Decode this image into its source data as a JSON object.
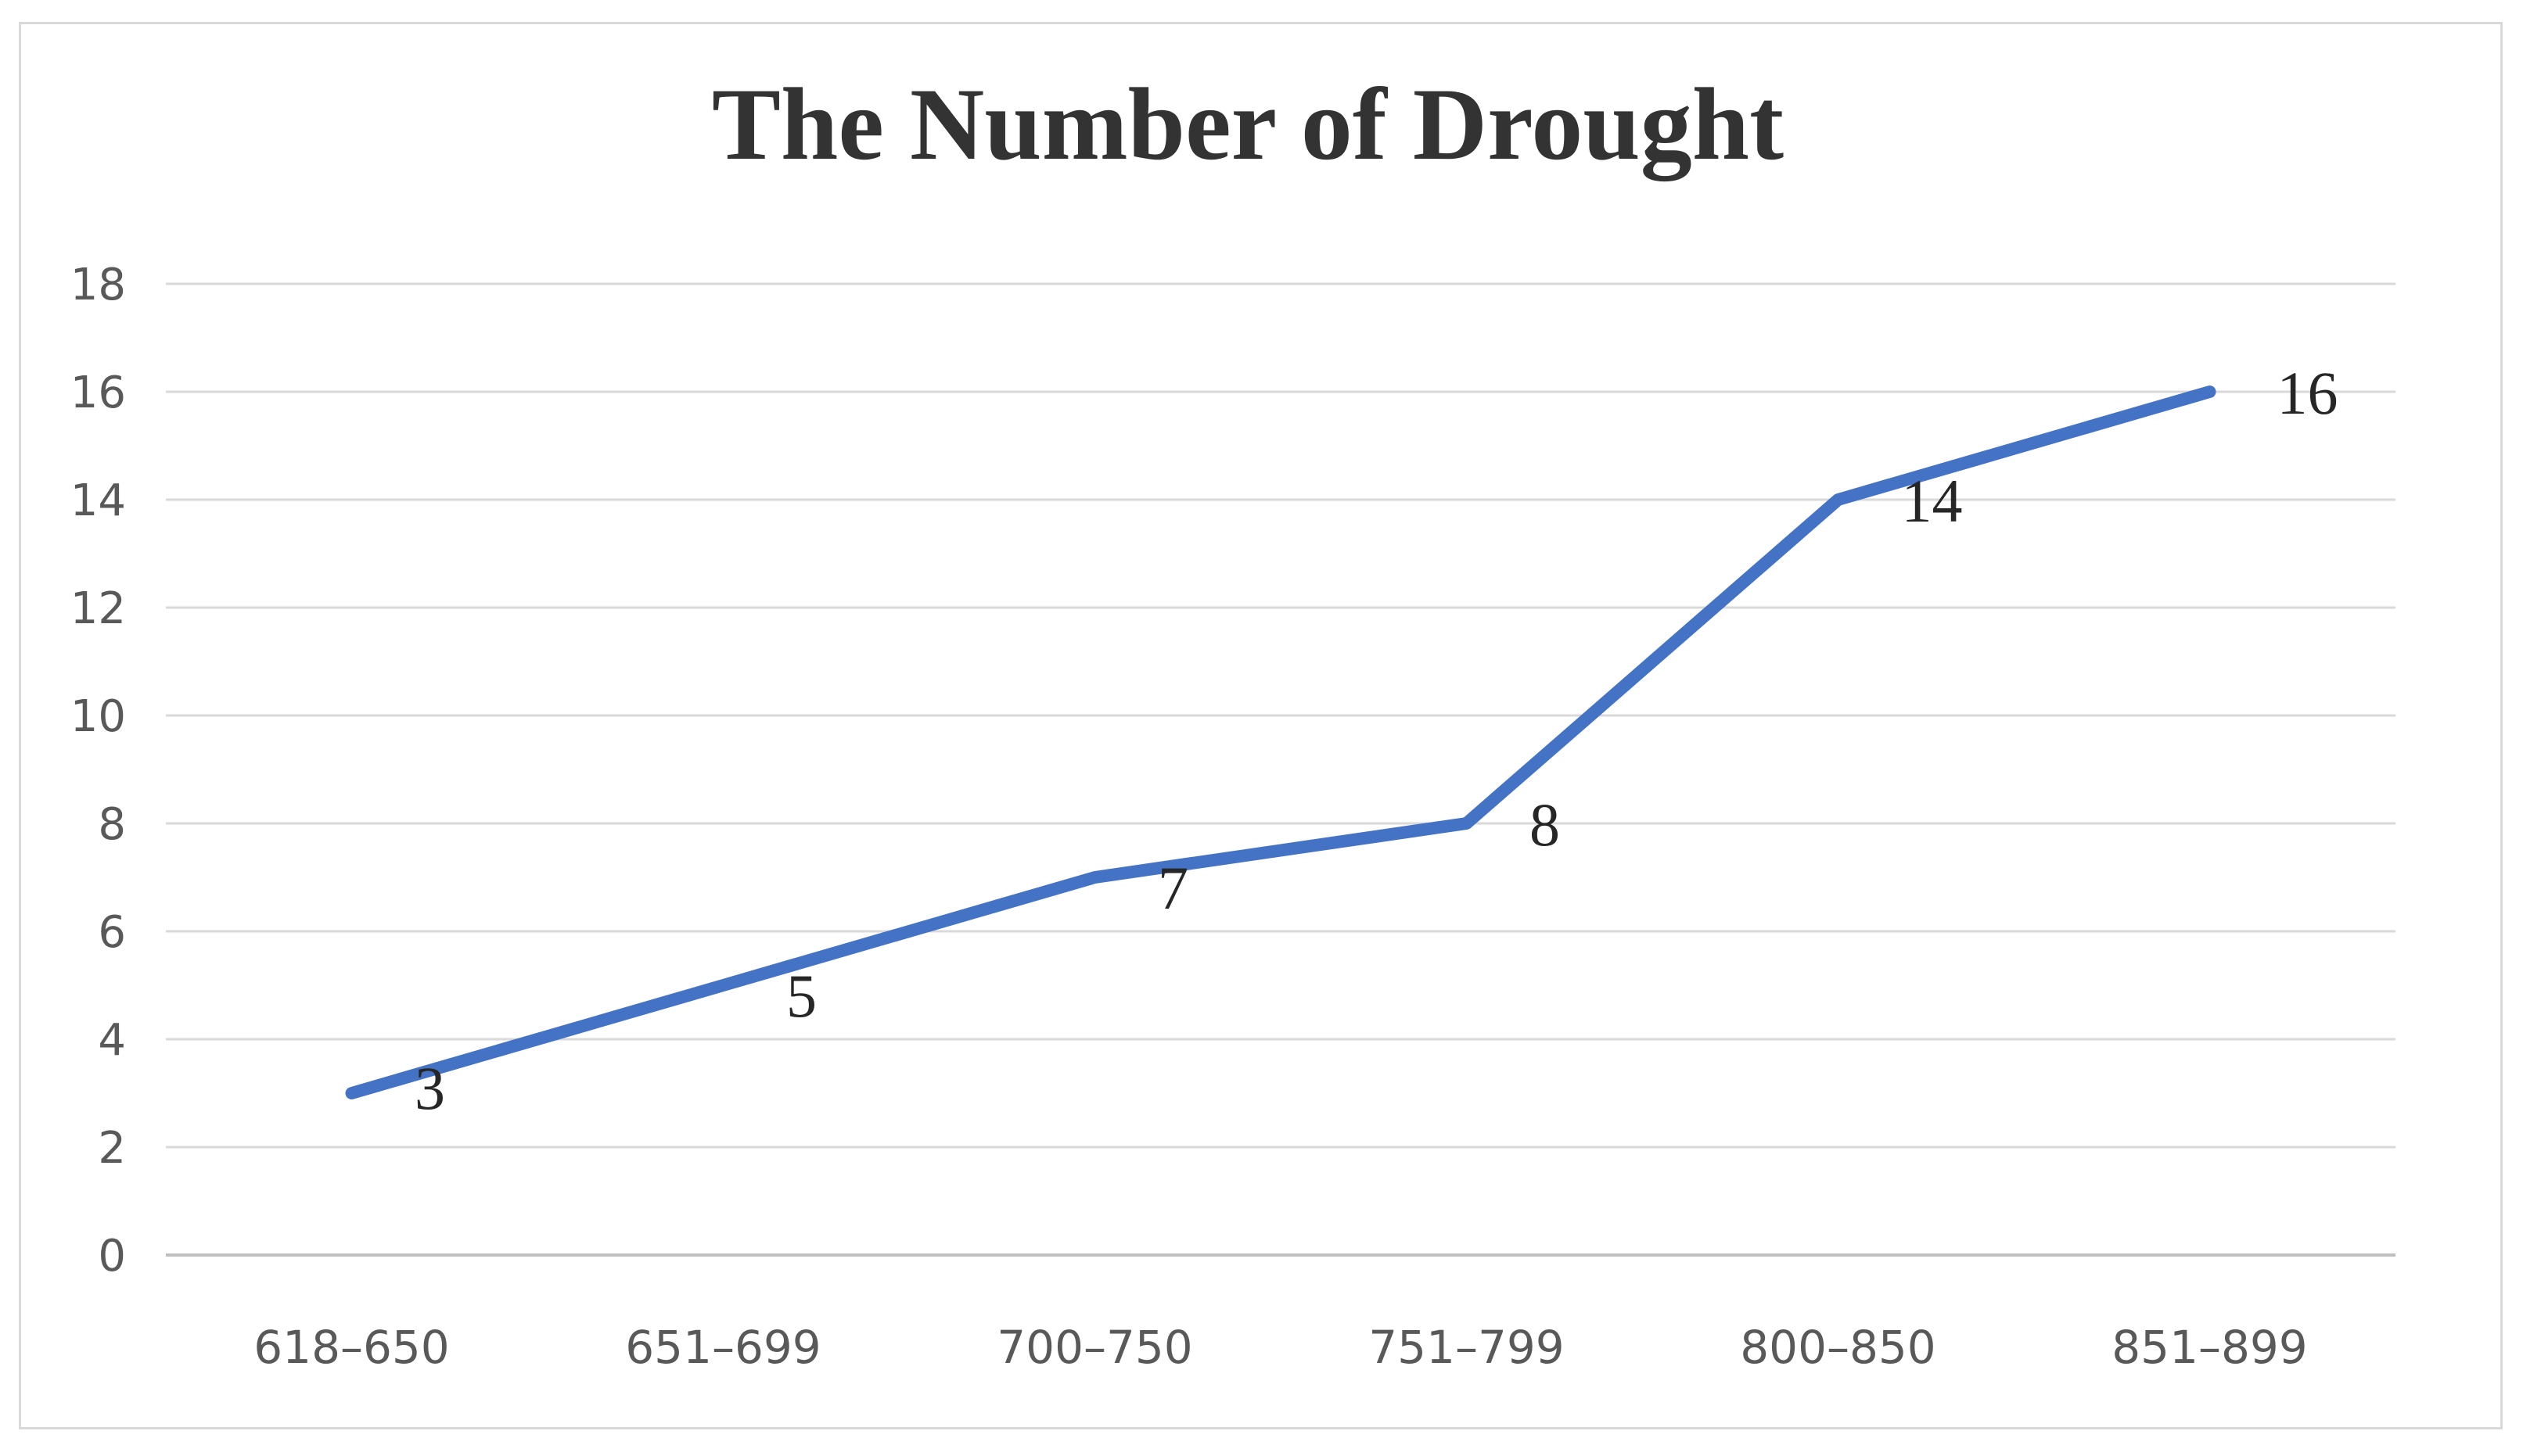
{
  "chart_data": {
    "type": "line",
    "title": "The Number of Drought",
    "categories": [
      "618–650",
      "651–699",
      "700–750",
      "751–799",
      "800–850",
      "851–899"
    ],
    "series": [
      {
        "name": "The Number of Drought",
        "values": [
          3,
          5,
          7,
          8,
          14,
          16
        ],
        "color": "#4472c4"
      }
    ],
    "data_labels": [
      "3",
      "5",
      "7",
      "8",
      "14",
      "16"
    ],
    "y_ticks": [
      "0",
      "2",
      "4",
      "6",
      "8",
      "10",
      "12",
      "14",
      "16",
      "18"
    ],
    "ylim": [
      0,
      18
    ],
    "grid": true,
    "legend": "none",
    "xlabel": "",
    "ylabel": "",
    "colors": {
      "title": "#333333",
      "grid": "#d9d9d9",
      "axis": "#bfbfbf",
      "line": "#4472c4"
    }
  }
}
